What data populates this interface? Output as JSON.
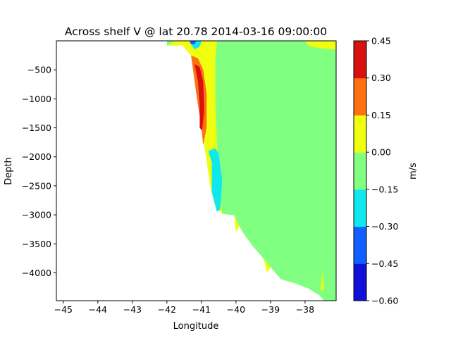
{
  "chart_data": {
    "type": "contourf",
    "title": "Across shelf V @ lat 20.78 2014-03-16 09:00:00",
    "xlabel": "Longitude",
    "ylabel": "Depth",
    "xlim": [
      -45.2,
      -37.1
    ],
    "ylim": [
      -4480,
      0
    ],
    "x_ticks": [
      -45,
      -44,
      -43,
      -42,
      -41,
      -40,
      -39,
      -38
    ],
    "x_tick_labels": [
      "−45",
      "−44",
      "−43",
      "−42",
      "−41",
      "−40",
      "−39",
      "−38"
    ],
    "y_ticks": [
      -500,
      -1000,
      -1500,
      -2000,
      -2500,
      -3000,
      -3500,
      -4000
    ],
    "y_tick_labels": [
      "−500",
      "−1000",
      "−1500",
      "−2000",
      "−2500",
      "−3000",
      "−3500",
      "−4000"
    ],
    "colorbar": {
      "label": "m/s",
      "levels": [
        -0.6,
        -0.45,
        -0.3,
        -0.15,
        0.0,
        0.15,
        0.3,
        0.45
      ],
      "level_labels": [
        "−0.60",
        "−0.45",
        "−0.30",
        "−0.15",
        "0.00",
        "0.15",
        "0.30",
        "0.45"
      ],
      "colors": [
        "#1010d8",
        "#1060ff",
        "#10e8f0",
        "#80ff80",
        "#f0ff10",
        "#ff7010",
        "#d81010"
      ]
    },
    "bottom_profile": [
      [
        -42.0,
        -80
      ],
      [
        -41.55,
        -80
      ],
      [
        -41.3,
        -250
      ],
      [
        -41.15,
        -900
      ],
      [
        -41.0,
        -1500
      ],
      [
        -40.85,
        -2050
      ],
      [
        -40.75,
        -2500
      ],
      [
        -40.6,
        -2850
      ],
      [
        -40.4,
        -2980
      ],
      [
        -40.05,
        -3010
      ],
      [
        -39.9,
        -3200
      ],
      [
        -39.75,
        -3350
      ],
      [
        -39.5,
        -3550
      ],
      [
        -39.25,
        -3720
      ],
      [
        -39.0,
        -3900
      ],
      [
        -38.7,
        -4110
      ],
      [
        -38.3,
        -4180
      ],
      [
        -37.9,
        -4270
      ],
      [
        -37.6,
        -4380
      ],
      [
        -37.45,
        -4480
      ],
      [
        -37.1,
        -4480
      ]
    ],
    "contours": [
      {
        "level": "0.00 to 0.15",
        "polygon": [
          [
            -42.0,
            -80
          ],
          [
            -41.55,
            -80
          ],
          [
            -41.3,
            -250
          ],
          [
            -41.15,
            -900
          ],
          [
            -41.0,
            -1500
          ],
          [
            -40.85,
            -2050
          ],
          [
            -40.75,
            -2500
          ],
          [
            -40.6,
            -2850
          ],
          [
            -40.4,
            -2980
          ],
          [
            -40.5,
            -2400
          ],
          [
            -40.55,
            -1800
          ],
          [
            -40.6,
            -1000
          ],
          [
            -40.6,
            -300
          ],
          [
            -40.55,
            0
          ],
          [
            -41.75,
            0
          ]
        ]
      },
      {
        "level": "0.00 to 0.15",
        "polygon": [
          [
            -38.0,
            0
          ],
          [
            -37.1,
            0
          ],
          [
            -37.1,
            -150
          ],
          [
            -37.5,
            -130
          ],
          [
            -37.9,
            -90
          ]
        ]
      },
      {
        "level": "0.15 to 0.30",
        "polygon": [
          [
            -41.3,
            -250
          ],
          [
            -41.15,
            -900
          ],
          [
            -41.0,
            -1500
          ],
          [
            -40.95,
            -1800
          ],
          [
            -40.85,
            -1500
          ],
          [
            -40.85,
            -900
          ],
          [
            -40.95,
            -500
          ],
          [
            -41.1,
            -300
          ]
        ]
      },
      {
        "level": "0.30 to 0.45",
        "polygon": [
          [
            -41.2,
            -400
          ],
          [
            -41.1,
            -700
          ],
          [
            -41.05,
            -1100
          ],
          [
            -41.05,
            -1500
          ],
          [
            -40.98,
            -1550
          ],
          [
            -40.92,
            -1200
          ],
          [
            -40.95,
            -700
          ],
          [
            -41.05,
            -450
          ]
        ]
      },
      {
        "level": "-0.15 to -0.30",
        "polygon": [
          [
            -40.8,
            -1900
          ],
          [
            -40.7,
            -2100
          ],
          [
            -40.7,
            -2600
          ],
          [
            -40.55,
            -2950
          ],
          [
            -40.45,
            -2900
          ],
          [
            -40.4,
            -2400
          ],
          [
            -40.5,
            -1950
          ],
          [
            -40.6,
            -1850
          ]
        ]
      },
      {
        "level": "-0.15 to -0.30",
        "polygon": [
          [
            -41.35,
            0
          ],
          [
            -41.0,
            0
          ],
          [
            -41.05,
            -100
          ],
          [
            -41.2,
            -150
          ]
        ]
      },
      {
        "level": "-0.30 to -0.45",
        "polygon": [
          [
            -41.35,
            0
          ],
          [
            -41.15,
            0
          ],
          [
            -41.2,
            -60
          ],
          [
            -41.3,
            -60
          ]
        ]
      },
      {
        "level": "0.00 to 0.15",
        "polygon": [
          [
            -40.05,
            -3010
          ],
          [
            -40.0,
            -3300
          ],
          [
            -39.9,
            -3200
          ]
        ]
      },
      {
        "level": "0.00 to 0.15",
        "polygon": [
          [
            -39.0,
            -3900
          ],
          [
            -39.1,
            -4000
          ],
          [
            -39.2,
            -3760
          ],
          [
            -39.25,
            -3720
          ]
        ]
      },
      {
        "level": "0.00 to 0.15",
        "polygon": [
          [
            -37.55,
            -4300
          ],
          [
            -37.5,
            -3950
          ],
          [
            -37.45,
            -4300
          ]
        ]
      }
    ]
  }
}
